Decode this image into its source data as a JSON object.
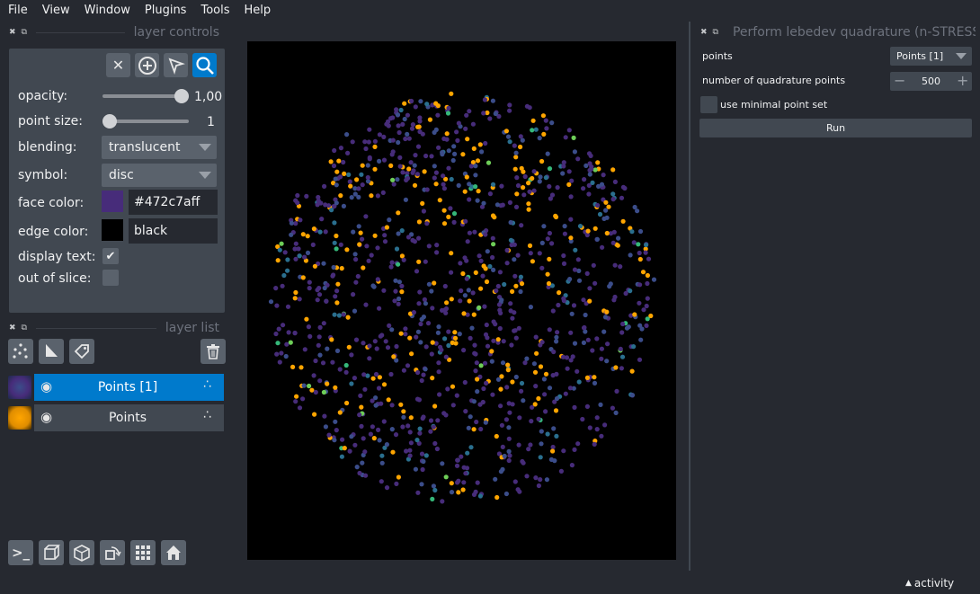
{
  "menubar": [
    "File",
    "View",
    "Window",
    "Plugins",
    "Tools",
    "Help"
  ],
  "left_dock": {
    "layer_controls_title": "layer controls",
    "layer_list_title": "layer list"
  },
  "controls": {
    "opacity_label": "opacity:",
    "opacity_value": "1,00",
    "opacity_fraction": 1.0,
    "point_size_label": "point size:",
    "point_size_value": "1",
    "blending_label": "blending:",
    "blending_value": "translucent",
    "symbol_label": "symbol:",
    "symbol_value": "disc",
    "face_color_label": "face color:",
    "face_color_value": "#472c7aff",
    "face_color_swatch": "#472c7a",
    "edge_color_label": "edge color:",
    "edge_color_value": "black",
    "edge_color_swatch": "#000000",
    "display_text_label": "display text:",
    "display_text_checked": true,
    "out_of_slice_label": "out of slice:",
    "out_of_slice_checked": false
  },
  "layers": [
    {
      "name": "Points [1]",
      "selected": true,
      "visible": true
    },
    {
      "name": "Points",
      "selected": false,
      "visible": true
    }
  ],
  "right_dock": {
    "title": "Perform lebedev quadrature (n-STRESS)",
    "points_label": "points",
    "points_value": "Points [1]",
    "nq_label": "number of quadrature points",
    "nq_value": "500",
    "minimal_label": "use minimal point set",
    "run_label": "Run"
  },
  "status": {
    "activity_label": "activity"
  },
  "colors": {
    "accent": "#007acc",
    "point_colors": [
      "#472c7a",
      "#3b4d8a",
      "#2a6f8e",
      "#ffa500",
      "#35b779",
      "#6ece58"
    ]
  }
}
